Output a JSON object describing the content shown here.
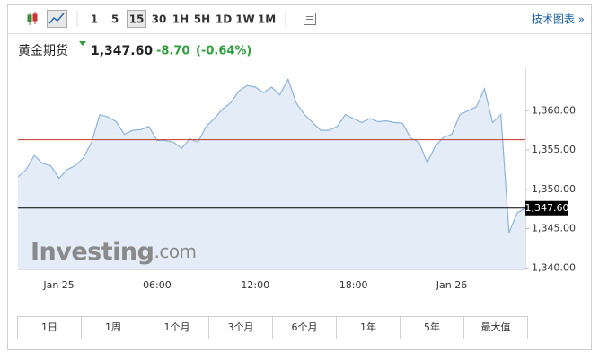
{
  "toolbar": {
    "intervals": [
      "1",
      "5",
      "15",
      "30",
      "1H",
      "5H",
      "1D",
      "1W",
      "1M"
    ],
    "selected_interval": 2,
    "link": "技术图表 »"
  },
  "quote": {
    "name": "黄金期货",
    "price": "1,347.60",
    "change": "-8.70",
    "change_pct": "(-0.64%)"
  },
  "watermark": {
    "brand": "Investing",
    "suffix": ".com"
  },
  "chart_data": {
    "type": "area",
    "color": "#8db3d9",
    "fill": "#e4edf7",
    "categories": [
      null,
      null,
      null,
      null,
      null,
      "Jan 25",
      null,
      null,
      null,
      null,
      null,
      null,
      null,
      null,
      null,
      null,
      null,
      "06:00",
      null,
      null,
      null,
      null,
      null,
      null,
      null,
      null,
      null,
      null,
      null,
      "12:00",
      null,
      null,
      null,
      null,
      null,
      null,
      null,
      null,
      null,
      null,
      null,
      "18:00",
      null,
      null,
      null,
      null,
      null,
      null,
      null,
      null,
      null,
      null,
      null,
      "Jan 26",
      null,
      null,
      null,
      null,
      null,
      null,
      null,
      null,
      null
    ],
    "values": [
      1351.6,
      1352.5,
      1354.3,
      1353.3,
      1353.0,
      1351.4,
      1352.5,
      1353.0,
      1354.0,
      1356.0,
      1359.5,
      1359.2,
      1358.6,
      1357.0,
      1357.5,
      1357.6,
      1358.0,
      1356.2,
      1356.2,
      1356.0,
      1355.2,
      1356.4,
      1356.0,
      1358.0,
      1359.0,
      1360.2,
      1361.0,
      1362.5,
      1363.2,
      1363.0,
      1362.3,
      1363.0,
      1362.0,
      1364.0,
      1361.0,
      1359.5,
      1358.5,
      1357.5,
      1357.5,
      1358.0,
      1359.5,
      1359.0,
      1358.5,
      1359.0,
      1358.6,
      1358.7,
      1358.5,
      1358.4,
      1356.5,
      1356.0,
      1353.4,
      1355.5,
      1356.6,
      1357.0,
      1359.5,
      1360.0,
      1360.5,
      1362.8,
      1358.5,
      1359.5,
      1344.5,
      1347.0,
      1347.6
    ],
    "ylim": [
      1339.8,
      1365.4
    ],
    "yticks": [
      {
        "value": 1340,
        "label": "1,340.00"
      },
      {
        "value": 1345,
        "label": "1,345.00"
      },
      {
        "value": 1350,
        "label": "1,350.00"
      },
      {
        "value": 1355,
        "label": "1,355.00"
      },
      {
        "value": 1360,
        "label": "1,360.00"
      }
    ],
    "grid": false,
    "prev_close": {
      "value": 1356.3,
      "color": "#c0392b"
    },
    "last_price": {
      "value": 1347.6,
      "label": "1,347.60",
      "color": "#000000"
    }
  },
  "range_buttons": [
    "1日",
    "1周",
    "1个月",
    "3个月",
    "6个月",
    "1年",
    "5年",
    "最大值"
  ]
}
